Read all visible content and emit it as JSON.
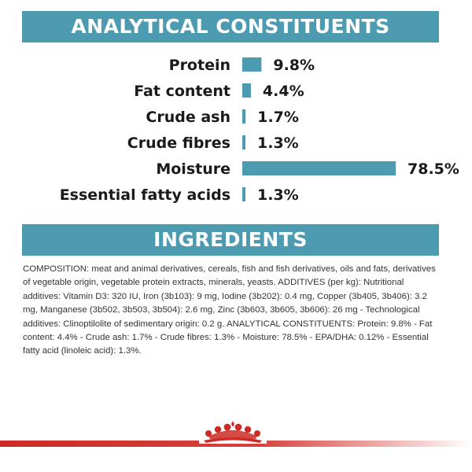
{
  "header": {
    "analytical_title": "ANALYTICAL CONSTITUENTS",
    "ingredients_title": "INGREDIENTS"
  },
  "chart_data": {
    "type": "bar",
    "orientation": "horizontal",
    "title": "ANALYTICAL CONSTITUENTS",
    "categories": [
      "Protein",
      "Fat content",
      "Crude ash",
      "Crude fibres",
      "Moisture",
      "Essential fatty acids"
    ],
    "values": [
      9.8,
      4.4,
      1.7,
      1.3,
      78.5,
      1.3
    ],
    "value_labels": [
      "9.8%",
      "4.4%",
      "1.7%",
      "1.3%",
      "78.5%",
      "1.3%"
    ],
    "xlim": [
      0,
      78.5
    ],
    "grid": false,
    "legend": "none",
    "bar_color": "#4c9bb1"
  },
  "ingredients": {
    "composition": "COMPOSITION: meat and animal derivatives, cereals, fish and fish derivatives, oils and fats, derivatives of vegetable origin, vegetable protein extracts, minerals, yeasts. ADDITIVES (per kg): Nutritional additives: Vitamin D3: 320 IU, Iron (3b103): 9 mg, Iodine (3b202): 0.4 mg, Copper (3b405, 3b406): 3.2 mg, Manganese (3b502, 3b503, 3b504): 2.6 mg, Zinc (3b603, 3b605, 3b606): 26 mg - Technological additives: Clinoptilolite of sedimentary origin: 0.2 g. ANALYTICAL CONSTITUENTS: Protein: 9.8% - Fat content: 4.4% - Crude ash: 1.7% - Crude fibres: 1.3% - Moisture: 78.5% - EPA/DHA: 0.12% - Essential fatty acid (linoleic acid): 1.3%."
  },
  "colors": {
    "accent": "#4c9bb1",
    "footer_red": "#cd2a25"
  },
  "icons": {
    "footer_logo": "crown-icon"
  }
}
